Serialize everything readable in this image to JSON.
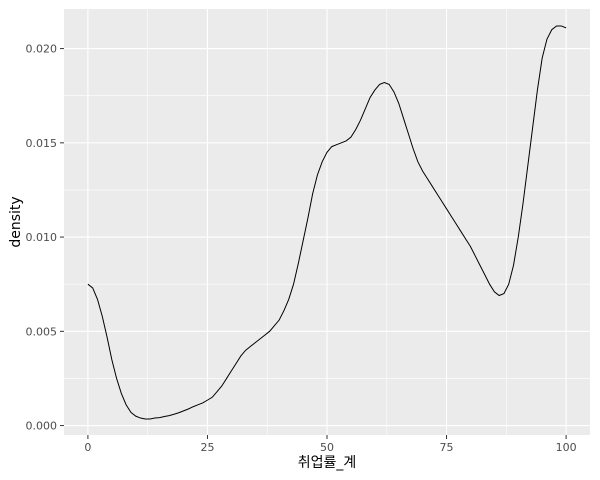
{
  "chart_data": {
    "type": "line",
    "title": "",
    "xlabel": "취업률_계",
    "ylabel": "density",
    "xlim": [
      -5,
      105
    ],
    "ylim": [
      -0.0005,
      0.0221
    ],
    "x_ticks": [
      0,
      25,
      50,
      75,
      100
    ],
    "x_tick_labels": [
      "0",
      "25",
      "50",
      "75",
      "100"
    ],
    "y_ticks": [
      0.0,
      0.005,
      0.01,
      0.015,
      0.02
    ],
    "y_tick_labels": [
      "0.000",
      "0.005",
      "0.010",
      "0.015",
      "0.020"
    ],
    "grid": true,
    "legend": "none",
    "colors": {
      "panel": "#ebebeb",
      "grid": "#ffffff",
      "line": "#000000"
    },
    "series": [
      {
        "x": [
          0,
          1,
          2,
          3,
          4,
          5,
          6,
          7,
          8,
          9,
          10,
          11,
          12,
          13,
          14,
          15,
          16,
          17,
          18,
          19,
          20,
          21,
          22,
          23,
          24,
          25,
          26,
          27,
          28,
          29,
          30,
          31,
          32,
          33,
          34,
          35,
          36,
          37,
          38,
          39,
          40,
          41,
          42,
          43,
          44,
          45,
          46,
          47,
          48,
          49,
          50,
          51,
          52,
          53,
          54,
          55,
          56,
          57,
          58,
          59,
          60,
          61,
          62,
          63,
          64,
          65,
          66,
          67,
          68,
          69,
          70,
          71,
          72,
          73,
          74,
          75,
          76,
          77,
          78,
          79,
          80,
          81,
          82,
          83,
          84,
          85,
          86,
          87,
          88,
          89,
          90,
          91,
          92,
          93,
          94,
          95,
          96,
          97,
          98,
          99,
          100
        ],
        "values": [
          0.0075,
          0.0073,
          0.0067,
          0.0058,
          0.0047,
          0.0035,
          0.0025,
          0.0017,
          0.0011,
          0.0007,
          0.0005,
          0.0004,
          0.00035,
          0.00035,
          0.0004,
          0.00042,
          0.00048,
          0.00053,
          0.0006,
          0.00068,
          0.00078,
          0.00088,
          0.001,
          0.0011,
          0.0012,
          0.00135,
          0.0015,
          0.0018,
          0.0021,
          0.0025,
          0.0029,
          0.0033,
          0.0037,
          0.004,
          0.0042,
          0.0044,
          0.0046,
          0.0048,
          0.005,
          0.0053,
          0.0056,
          0.0061,
          0.0067,
          0.0075,
          0.0086,
          0.0098,
          0.011,
          0.0123,
          0.0133,
          0.014,
          0.0145,
          0.0148,
          0.0149,
          0.015,
          0.0151,
          0.0153,
          0.0157,
          0.0162,
          0.0168,
          0.0174,
          0.0178,
          0.0181,
          0.0182,
          0.0181,
          0.0177,
          0.0171,
          0.0163,
          0.0155,
          0.0147,
          0.014,
          0.0135,
          0.0131,
          0.0127,
          0.0123,
          0.0119,
          0.0115,
          0.0111,
          0.0107,
          0.0103,
          0.0099,
          0.0095,
          0.009,
          0.0085,
          0.008,
          0.0075,
          0.0071,
          0.0069,
          0.007,
          0.0075,
          0.0085,
          0.01,
          0.0118,
          0.0138,
          0.0158,
          0.0178,
          0.0195,
          0.0205,
          0.021,
          0.0212,
          0.0212,
          0.0211
        ]
      }
    ]
  }
}
